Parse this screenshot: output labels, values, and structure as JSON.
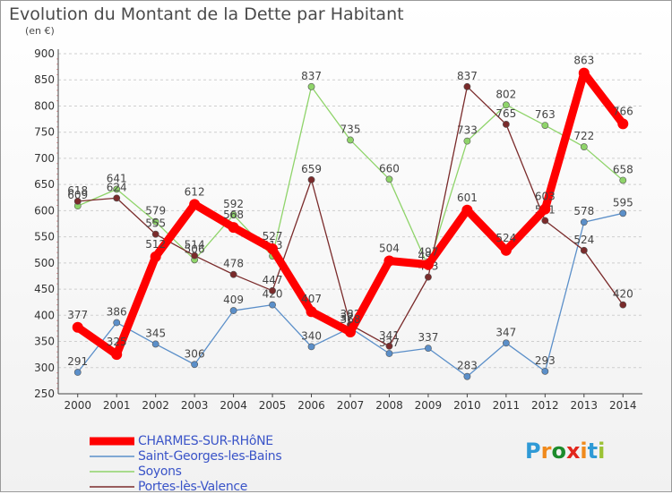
{
  "title": "Evolution du Montant de la Dette par Habitant",
  "subtitle": "(en €)",
  "logo": {
    "text": "Proxiti",
    "colors": [
      "#2f9ad6",
      "#f08a1c",
      "#1d8b2c",
      "#e2261c",
      "#f08a1c",
      "#2f9ad6",
      "#9bc234"
    ]
  },
  "chart_data": {
    "type": "line",
    "x": [
      "2000",
      "2001",
      "2002",
      "2003",
      "2004",
      "2005",
      "2006",
      "2007",
      "2008",
      "2009",
      "2010",
      "2011",
      "2012",
      "2013",
      "2014"
    ],
    "ylim": [
      250,
      900
    ],
    "yticks": [
      250,
      300,
      350,
      400,
      450,
      500,
      550,
      600,
      650,
      700,
      750,
      800,
      850,
      900
    ],
    "grid": "horizontal dashed",
    "legend_position": "bottom-left",
    "series": [
      {
        "name": "Saint-Georges-les-Bains",
        "color": "#5b8fc9",
        "values": [
          291,
          386,
          345,
          306,
          409,
          420,
          340,
          376,
          327,
          337,
          283,
          347,
          293,
          578,
          595
        ],
        "labels": [
          "291",
          "386",
          "345",
          "306",
          "409",
          "420",
          "340",
          "376",
          "327",
          "337",
          "283",
          "347",
          "293",
          "578",
          "595"
        ]
      },
      {
        "name": "Soyons",
        "color": "#8fd46a",
        "values": [
          609,
          641,
          579,
          506,
          592,
          513,
          837,
          735,
          660,
          493,
          733,
          802,
          763,
          722,
          658
        ],
        "labels": [
          "609",
          "641",
          "579",
          "506",
          "592",
          "513",
          "837",
          "735",
          "660",
          "493",
          "733",
          "802",
          "763",
          "722",
          "658"
        ]
      },
      {
        "name": "Portes-lès-Valence",
        "color": "#7a2b2b",
        "values": [
          618,
          624,
          555,
          514,
          478,
          447,
          659,
          382,
          341,
          473,
          837,
          765,
          581,
          524,
          420
        ],
        "labels": [
          "618",
          "624",
          "555",
          "514",
          "478",
          "447",
          "659",
          "382",
          "341",
          "473",
          "837",
          "765",
          "581",
          "524",
          "420"
        ]
      },
      {
        "name": "CHARMES-SUR-RHôNE",
        "color": "#ff0000",
        "values": [
          377,
          325,
          512,
          612,
          568,
          527,
          407,
          368,
          504,
          497,
          601,
          524,
          603,
          863,
          766
        ],
        "labels": [
          "377",
          "325",
          "512",
          "612",
          "568",
          "527",
          "407",
          "368",
          "504",
          "497",
          "601",
          "524",
          "603",
          "863",
          "766"
        ]
      }
    ]
  }
}
